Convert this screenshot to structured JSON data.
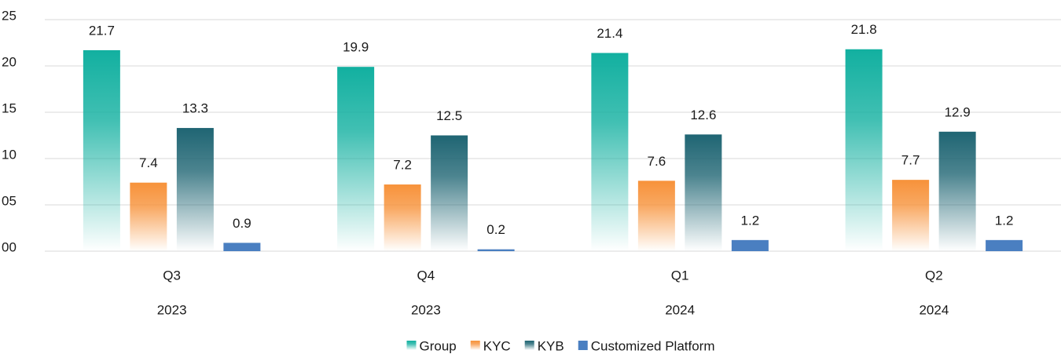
{
  "chart_data": {
    "type": "bar",
    "categories": [
      "Q3",
      "Q4",
      "Q1",
      "Q2"
    ],
    "years": [
      "2023",
      "2023",
      "2024",
      "2024"
    ],
    "series": [
      {
        "name": "Group",
        "color": "#12b0a0",
        "gradient": true,
        "values": [
          21.7,
          19.9,
          21.4,
          21.8
        ]
      },
      {
        "name": "KYC",
        "color": "#f7923a",
        "gradient": true,
        "values": [
          7.4,
          7.2,
          7.6,
          7.7
        ]
      },
      {
        "name": "KYB",
        "color": "#1f6573",
        "gradient": true,
        "values": [
          13.3,
          12.5,
          12.6,
          12.9
        ]
      },
      {
        "name": "Customized Platform",
        "color": "#4a7fc1",
        "gradient": false,
        "values": [
          0.9,
          0.2,
          1.2,
          1.2
        ]
      }
    ],
    "ylim": [
      0,
      25
    ],
    "yticks": [
      {
        "value": 0,
        "label": "00"
      },
      {
        "value": 5,
        "label": "05"
      },
      10,
      15,
      20,
      25
    ],
    "grid": true,
    "legend": "bottom"
  }
}
